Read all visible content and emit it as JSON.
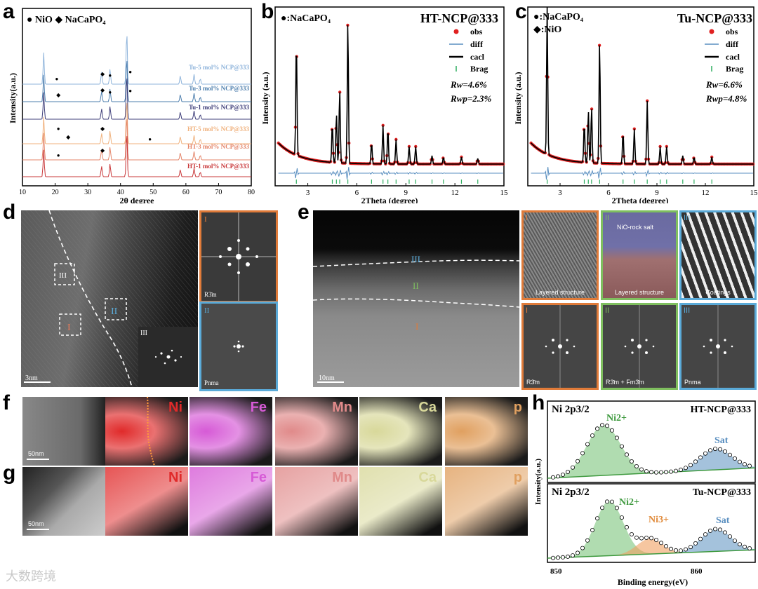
{
  "panel_labels": {
    "a": "a",
    "b": "b",
    "c": "c",
    "d": "d",
    "e": "e",
    "f": "f",
    "g": "g",
    "h": "h"
  },
  "panel_a": {
    "legend": "● NiO ◆ NaCaPO₄",
    "ylabel": "Intensity(a.u.)",
    "xlabel": "2θ degree",
    "xticks": [
      "10",
      "20",
      "30",
      "40",
      "50",
      "60",
      "70",
      "80"
    ],
    "series": [
      {
        "name": "Tu-5 mol% NCP@333",
        "color": "#8fb4db"
      },
      {
        "name": "Tu-3 mol% NCP@333",
        "color": "#4e7fae"
      },
      {
        "name": "Tu-1 mol% NCP@333",
        "color": "#3f3f7a"
      },
      {
        "name": "HT-5 mol% NCP@333",
        "color": "#f0b27e"
      },
      {
        "name": "HT-3 mol% NCP@333",
        "color": "#e4866b"
      },
      {
        "name": "HT-1 mol% NCP@333",
        "color": "#c9383a"
      }
    ],
    "peaks_2theta": [
      16.5,
      34.2,
      36.8,
      41.9,
      58.3,
      62.5,
      64.4
    ]
  },
  "panel_b": {
    "legend_phase": "●:NaCaPO₄",
    "title": "HT-NCP@333",
    "legend": [
      "obs",
      "diff",
      "cacl",
      "Brag"
    ],
    "rw": "Rw=4.6%",
    "rwp": "Rwp=2.3%",
    "ylabel": "Intensity (a.u.)",
    "xlabel": "2Theta (degree)",
    "xticks": [
      "3",
      "6",
      "9",
      "12",
      "15"
    ]
  },
  "panel_c": {
    "legend_phase1": "●:NaCaPO₄",
    "legend_phase2": "◆:NiO",
    "title": "Tu-NCP@333",
    "legend": [
      "obs",
      "diff",
      "cacl",
      "Brag"
    ],
    "rw": "Rw=6.6%",
    "rwp": "Rwp=4.8%",
    "ylabel": "Intensity (a.u.)",
    "xlabel": "2Theta (degree)",
    "xticks": [
      "3",
      "6",
      "9",
      "12",
      "15"
    ]
  },
  "panel_d": {
    "region_I": "I",
    "region_II": "II",
    "region_III": "III",
    "fft_I_label": "I",
    "fft_I_phase": "R3̄m",
    "fft_II_label": "II",
    "fft_II_phase": "Pnma",
    "fft_III_label": "III",
    "scale": "3nm"
  },
  "panel_e": {
    "region_I": "I",
    "region_II": "II",
    "region_III": "III",
    "scale": "10nm",
    "tiles_top": [
      {
        "roman": "I",
        "caption": "Layered structure"
      },
      {
        "roman": "II",
        "caption": "Layered structure",
        "sub": "NiO-rock salt"
      },
      {
        "roman": "III",
        "caption": "Coatings"
      }
    ],
    "tiles_bottom": [
      {
        "roman": "I",
        "caption": "R3̄m"
      },
      {
        "roman": "II",
        "caption": "R3̄m + Fm3̄m"
      },
      {
        "roman": "III",
        "caption": "Pnma"
      }
    ]
  },
  "panel_f": {
    "elements": [
      "Ni",
      "Fe",
      "Mn",
      "Ca",
      "p"
    ],
    "scale": "50nm"
  },
  "panel_g": {
    "elements": [
      "Ni",
      "Fe",
      "Mn",
      "Ca",
      "p"
    ],
    "scale": "50nm"
  },
  "panel_h": {
    "top": {
      "orbital": "Ni 2p3/2",
      "sample": "HT-NCP@333",
      "peak1": "Ni2+",
      "peak2": "Sat"
    },
    "bottom": {
      "orbital": "Ni 2p3/2",
      "sample": "Tu-NCP@333",
      "peak1": "Ni2+",
      "peak2": "Ni3+",
      "peak3": "Sat"
    },
    "ylabel": "Intensity(a.u.)",
    "xlabel": "Binding energy(eV)",
    "xticks": [
      "850",
      "860"
    ]
  },
  "watermark": "大数跨境",
  "colors": {
    "accent_orange": "#e07b39",
    "accent_blue": "#5aaad8",
    "accent_green": "#7fbf5f",
    "ni_red": "#e03030"
  }
}
